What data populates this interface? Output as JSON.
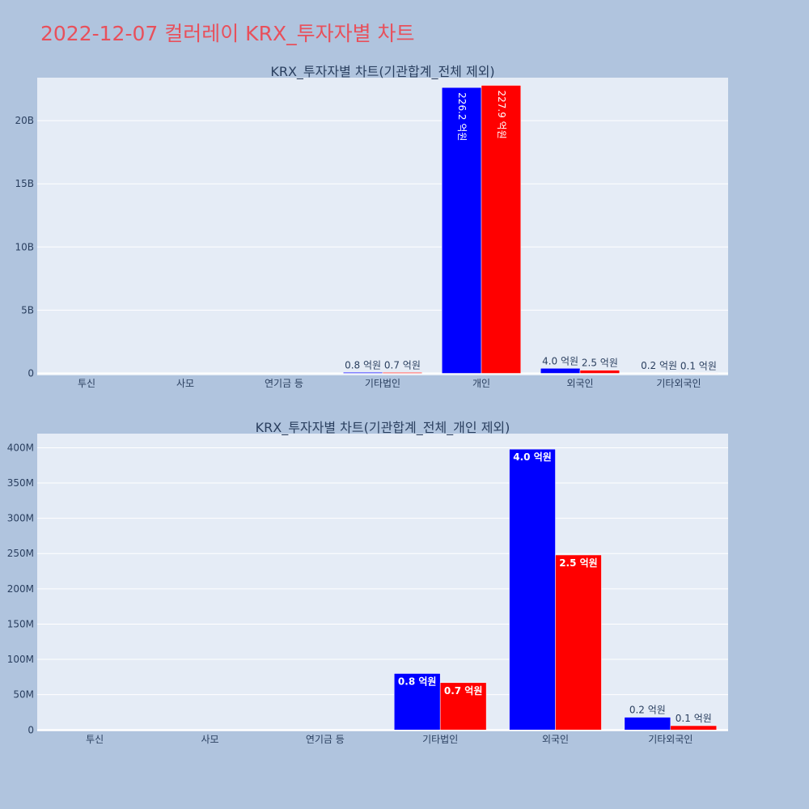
{
  "page": {
    "title": "2022-12-07 컬러레이 KRX_투자자별 차트"
  },
  "colors": {
    "background": "#b0c4de",
    "plot_bg": "#e5ecf6",
    "grid": "#ffffff",
    "title": "#e8505b",
    "text": "#2a3f5f",
    "buy": "#0000ff",
    "sell": "#ff0000"
  },
  "chart_data": [
    {
      "type": "bar",
      "title": "KRX_투자자별 차트(기관합계_전체 제외)",
      "categories": [
        "투신",
        "사모",
        "연기금 등",
        "기타법인",
        "개인",
        "외국인",
        "기타외국인"
      ],
      "yticks": [
        0,
        5000000000,
        10000000000,
        15000000000,
        20000000000
      ],
      "ytick_labels": [
        "0",
        "5B",
        "10B",
        "15B",
        "20B"
      ],
      "ylim": [
        -160000000,
        23400000000
      ],
      "series": [
        {
          "color": "#0000ff",
          "values": [
            0,
            0,
            0,
            80000000,
            22620000000,
            400000000,
            20000000
          ],
          "labels": [
            "",
            "",
            "",
            "0.8 억원",
            "226.2 억원",
            "4.0 억원",
            "0.2 억원"
          ]
        },
        {
          "color": "#ff0000",
          "values": [
            0,
            0,
            0,
            70000000,
            22790000000,
            250000000,
            10000000
          ],
          "labels": [
            "",
            "",
            "",
            "0.7 억원",
            "227.9 억원",
            "2.5 억원",
            "0.1 억원"
          ]
        }
      ]
    },
    {
      "type": "bar",
      "title": "KRX_투자자별 차트(기관합계_전체_개인 제외)",
      "categories": [
        "투신",
        "사모",
        "연기금 등",
        "기타법인",
        "외국인",
        "기타외국인"
      ],
      "yticks": [
        0,
        50000000,
        100000000,
        150000000,
        200000000,
        250000000,
        300000000,
        350000000,
        400000000
      ],
      "ytick_labels": [
        "0",
        "50M",
        "100M",
        "150M",
        "200M",
        "250M",
        "300M",
        "350M",
        "400M"
      ],
      "ylim": [
        -2000000,
        420000000
      ],
      "series": [
        {
          "color": "#0000ff",
          "values": [
            0,
            0,
            0,
            80000000,
            398000000,
            18000000
          ],
          "labels": [
            "",
            "",
            "",
            "0.8 억원",
            "4.0 억원",
            "0.2 억원"
          ]
        },
        {
          "color": "#ff0000",
          "values": [
            0,
            0,
            0,
            67000000,
            248000000,
            6000000
          ],
          "labels": [
            "",
            "",
            "",
            "0.7 억원",
            "2.5 억원",
            "0.1 억원"
          ]
        }
      ]
    }
  ]
}
